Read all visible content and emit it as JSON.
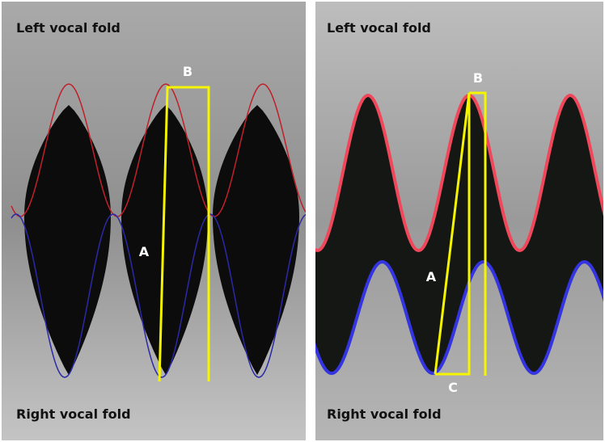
{
  "left_panel": {
    "top_label": "Left vocal fold",
    "bottom_label": "Right vocal fold",
    "annotations": [
      "A",
      "B"
    ]
  },
  "right_panel": {
    "top_label": "Left vocal fold",
    "bottom_label": "Right vocal fold",
    "annotations": [
      "A",
      "B",
      "C"
    ]
  }
}
